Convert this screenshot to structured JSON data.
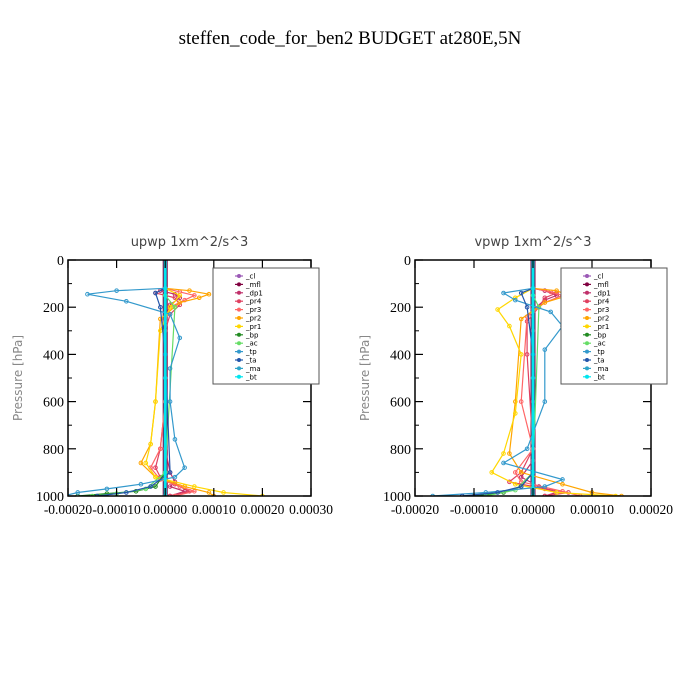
{
  "title": "steffen_code_for_ben2  BUDGET at280E,5N",
  "legend_items": [
    {
      "label": "_cl",
      "color": "#9b59b6"
    },
    {
      "label": "_mfl",
      "color": "#800040"
    },
    {
      "label": "_dp1",
      "color": "#c0306a"
    },
    {
      "label": "_pr4",
      "color": "#e04060"
    },
    {
      "label": "_pr3",
      "color": "#ff6666"
    },
    {
      "label": "_pr2",
      "color": "#ffa500"
    },
    {
      "label": "_pr1",
      "color": "#ffd700"
    },
    {
      "label": "_bp",
      "color": "#228b22"
    },
    {
      "label": "_ac",
      "color": "#66dd66"
    },
    {
      "label": "_tp",
      "color": "#3399cc"
    },
    {
      "label": "_ta",
      "color": "#2255aa"
    },
    {
      "label": "_ma",
      "color": "#2fa4c8"
    },
    {
      "label": "_bt",
      "color": "#00e5ee"
    }
  ],
  "chart_data": [
    {
      "type": "line",
      "title": "upwp  1xm^2/s^3",
      "ylabel": "Pressure [hPa]",
      "xlim": [
        -0.0002,
        0.0003
      ],
      "ylim": [
        0,
        1000
      ],
      "y_inverted": true,
      "xticks": [
        -0.0002,
        -0.0001,
        0.0,
        0.0001,
        0.0002,
        0.0003
      ],
      "xtick_labels": [
        "-0.00020",
        "-0.00010",
        "0.00000",
        "0.00010",
        "0.00020",
        "0.00030"
      ],
      "yticks": [
        0,
        200,
        400,
        600,
        800,
        1000
      ],
      "ytick_labels": [
        "0",
        "200",
        "400",
        "600",
        "800",
        "1000"
      ],
      "series": [
        {
          "name": "_cl",
          "x": [
            0,
            0
          ],
          "y": [
            0,
            1000
          ]
        },
        {
          "name": "_mfl",
          "x": [
            0,
            0
          ],
          "y": [
            0,
            1000
          ]
        },
        {
          "name": "_dp1",
          "x": [
            0,
            -1e-05,
            2e-05,
            3e-05,
            1e-05,
            0,
            0,
            0,
            0,
            1e-05,
            2e-05,
            1e-05,
            4e-05,
            1e-05
          ],
          "y": [
            120,
            130,
            145,
            160,
            190,
            250,
            400,
            600,
            800,
            900,
            940,
            960,
            980,
            1000
          ]
        },
        {
          "name": "_pr4",
          "x": [
            0,
            -2e-05,
            2e-05,
            3e-05,
            1e-05,
            0,
            0,
            -1e-05,
            -2e-05,
            -1e-05,
            2e-05,
            5e-05,
            1e-05
          ],
          "y": [
            120,
            140,
            160,
            190,
            230,
            300,
            600,
            800,
            880,
            920,
            950,
            980,
            1000
          ]
        },
        {
          "name": "_pr3",
          "x": [
            0,
            3e-05,
            6e-05,
            4e-05,
            1e-05,
            0,
            0,
            -1e-05,
            -3e-05,
            -1e-05,
            3e-05,
            6e-05,
            2e-05
          ],
          "y": [
            120,
            135,
            150,
            170,
            200,
            260,
            600,
            800,
            880,
            930,
            960,
            980,
            1000
          ]
        },
        {
          "name": "_pr2",
          "x": [
            0,
            5e-05,
            9e-05,
            7e-05,
            3e-05,
            -1e-05,
            -2e-05,
            -3e-05,
            -5e-05,
            -2e-05,
            4e-05,
            9e-05,
            0.0001
          ],
          "y": [
            120,
            130,
            145,
            160,
            180,
            250,
            600,
            780,
            860,
            920,
            960,
            985,
            1000
          ]
        },
        {
          "name": "_pr1",
          "x": [
            0,
            3e-05,
            1e-05,
            -1e-05,
            -2e-05,
            -3e-05,
            -4e-05,
            -2e-05,
            6e-05,
            0.00012,
            0.0002
          ],
          "y": [
            120,
            150,
            200,
            300,
            600,
            780,
            860,
            920,
            960,
            985,
            1000
          ]
        },
        {
          "name": "_bp",
          "x": [
            0,
            -2e-05,
            -6e-05,
            -0.00012,
            -0.00018
          ],
          "y": [
            900,
            960,
            980,
            990,
            1000
          ]
        },
        {
          "name": "_ac",
          "x": [
            0,
            2e-05,
            0,
            -4e-05,
            -0.0001,
            -0.00015
          ],
          "y": [
            150,
            200,
            900,
            970,
            990,
            1000
          ]
        },
        {
          "name": "_tp",
          "x": [
            0,
            -0.0001,
            -0.00016,
            -8e-05,
            1e-05,
            3e-05,
            1e-05,
            1e-05,
            2e-05,
            4e-05,
            2e-05,
            -5e-05,
            -0.00012,
            -0.00018,
            -0.00021
          ],
          "y": [
            120,
            130,
            145,
            175,
            230,
            330,
            460,
            600,
            760,
            880,
            920,
            950,
            970,
            985,
            1000
          ]
        },
        {
          "name": "_ta",
          "x": [
            0,
            -2e-05,
            -1e-05,
            0,
            1e-05,
            -3e-05,
            -8e-05,
            -0.00014
          ],
          "y": [
            120,
            140,
            200,
            400,
            900,
            960,
            985,
            1000
          ]
        },
        {
          "name": "_ma",
          "x": [
            0,
            0,
            0
          ],
          "y": [
            120,
            500,
            1000
          ]
        },
        {
          "name": "_bt",
          "x": [
            0,
            0
          ],
          "y": [
            0,
            1000
          ]
        }
      ]
    },
    {
      "type": "line",
      "title": "vpwp  1xm^2/s^3",
      "ylabel": "Pressure [hPa]",
      "xlim": [
        -0.0002,
        0.0002
      ],
      "ylim": [
        0,
        1000
      ],
      "y_inverted": true,
      "xticks": [
        -0.0002,
        -0.0001,
        0.0,
        0.0001,
        0.0002
      ],
      "xtick_labels": [
        "-0.00020",
        "-0.00010",
        "0.00000",
        "0.00010",
        "0.00020"
      ],
      "yticks": [
        0,
        200,
        400,
        600,
        800,
        1000
      ],
      "ytick_labels": [
        "0",
        "200",
        "400",
        "600",
        "800",
        "1000"
      ],
      "series": [
        {
          "name": "_cl",
          "x": [
            0,
            0
          ],
          "y": [
            0,
            1000
          ]
        },
        {
          "name": "_mfl",
          "x": [
            0,
            0
          ],
          "y": [
            0,
            1000
          ]
        },
        {
          "name": "_dp1",
          "x": [
            0,
            2e-05,
            4e-05,
            2e-05,
            0,
            0,
            0,
            0,
            -2e-05,
            1e-05,
            4e-05,
            2e-05
          ],
          "y": [
            120,
            130,
            150,
            170,
            210,
            300,
            600,
            850,
            920,
            960,
            985,
            1000
          ]
        },
        {
          "name": "_pr4",
          "x": [
            0,
            4e-05,
            2e-05,
            1e-05,
            -1e-05,
            -1e-05,
            0,
            -2e-05,
            -4e-05,
            2e-05,
            6e-05,
            2e-05
          ],
          "y": [
            120,
            140,
            160,
            200,
            260,
            400,
            800,
            900,
            940,
            970,
            985,
            1000
          ]
        },
        {
          "name": "_pr3",
          "x": [
            0,
            3e-05,
            5e-05,
            2e-05,
            -1e-05,
            -2e-05,
            0,
            -3e-05,
            -2e-05,
            5e-05,
            8e-05
          ],
          "y": [
            120,
            135,
            150,
            180,
            240,
            600,
            800,
            900,
            940,
            980,
            1000
          ]
        },
        {
          "name": "_pr2",
          "x": [
            0,
            4e-05,
            6e-05,
            2e-05,
            -2e-05,
            -3e-05,
            -4e-05,
            -2e-05,
            5e-05,
            0.0001,
            0.00015
          ],
          "y": [
            120,
            130,
            150,
            180,
            250,
            600,
            820,
            900,
            950,
            985,
            1000
          ]
        },
        {
          "name": "_pr1",
          "x": [
            0,
            -3e-05,
            -6e-05,
            -4e-05,
            -2e-05,
            -3e-05,
            -5e-05,
            -7e-05,
            -3e-05,
            4e-05,
            0.00014
          ],
          "y": [
            120,
            160,
            210,
            280,
            400,
            650,
            820,
            900,
            950,
            985,
            1000
          ]
        },
        {
          "name": "_bp",
          "x": [
            0,
            -2e-05,
            -5e-05,
            -0.0001
          ],
          "y": [
            900,
            960,
            985,
            1000
          ]
        },
        {
          "name": "_ac",
          "x": [
            0,
            1e-05,
            0,
            -3e-05,
            -8e-05
          ],
          "y": [
            150,
            200,
            900,
            975,
            1000
          ]
        },
        {
          "name": "_tp",
          "x": [
            0,
            -5e-05,
            -3e-05,
            3e-05,
            5e-05,
            2e-05,
            2e-05,
            -1e-05,
            -5e-05,
            5e-05,
            2e-05,
            -8e-05,
            -0.00017
          ],
          "y": [
            120,
            140,
            170,
            220,
            280,
            380,
            600,
            800,
            860,
            930,
            960,
            985,
            1000
          ]
        },
        {
          "name": "_ta",
          "x": [
            0,
            -2e-05,
            -1e-05,
            0,
            0,
            -2e-05,
            -6e-05,
            -0.00012
          ],
          "y": [
            120,
            140,
            200,
            400,
            900,
            960,
            985,
            1000
          ]
        },
        {
          "name": "_ma",
          "x": [
            0,
            0,
            0
          ],
          "y": [
            120,
            500,
            1000
          ]
        },
        {
          "name": "_bt",
          "x": [
            0,
            0
          ],
          "y": [
            0,
            1000
          ]
        }
      ]
    }
  ]
}
